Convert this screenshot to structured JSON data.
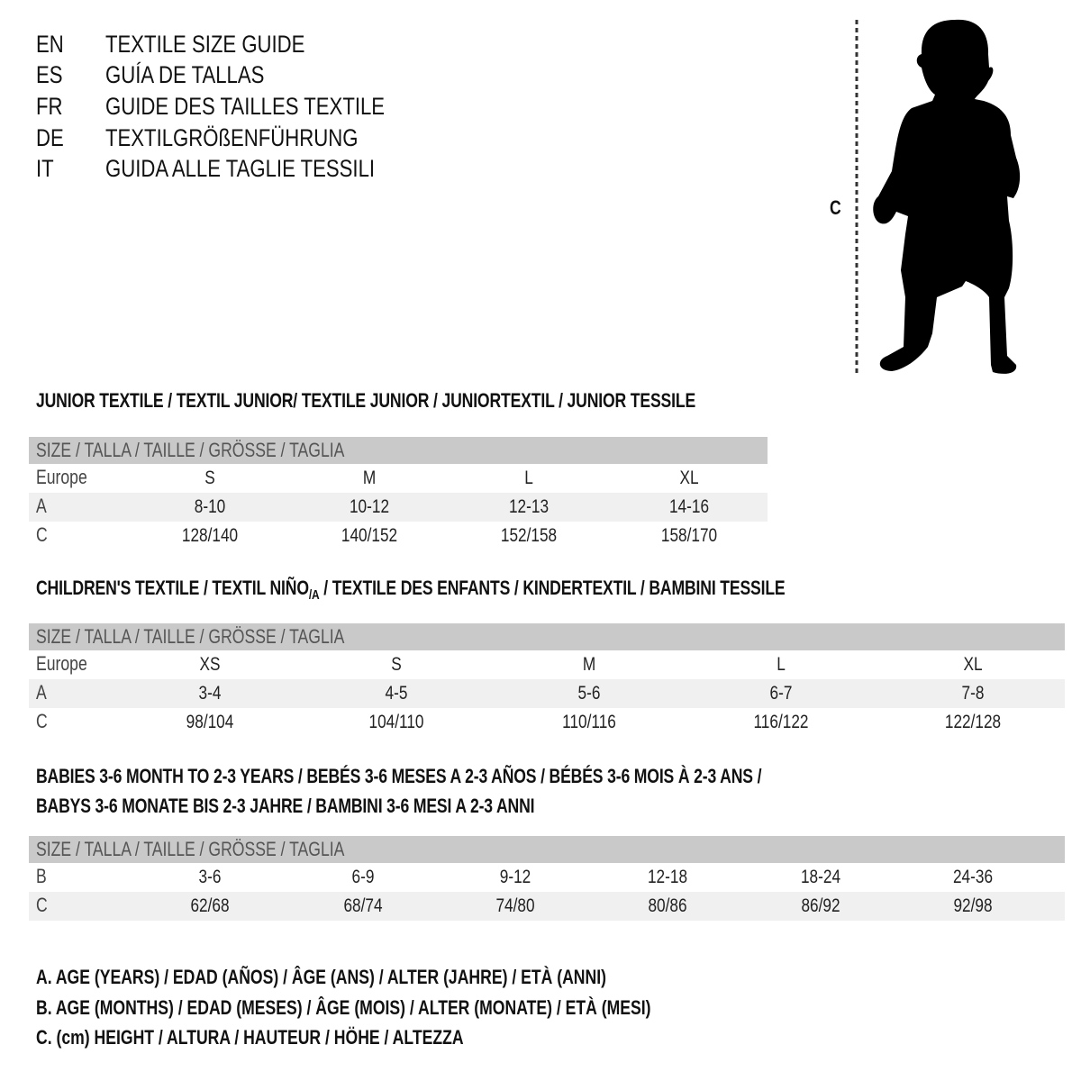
{
  "titles": [
    {
      "lang": "EN",
      "text": "TEXTILE SIZE GUIDE"
    },
    {
      "lang": "ES",
      "text": "GUÍA DE TALLAS"
    },
    {
      "lang": "FR",
      "text": "GUIDE DES TAILLES TEXTILE"
    },
    {
      "lang": "DE",
      "text": "TEXTILGRÖßENFÜHRUNG"
    },
    {
      "lang": "IT",
      "text": "GUIDA ALLE TAGLIE TESSILI"
    }
  ],
  "figure": {
    "label": "C",
    "icon": "child-silhouette-icon"
  },
  "junior": {
    "title": "JUNIOR TEXTILE / TEXTIL JUNIOR/ TEXTILE JUNIOR / JUNIORTEXTIL / JUNIOR TESSILE",
    "header": "SIZE / TALLA / TAILLE / GRÖSSE / TAGLIA",
    "rows": [
      {
        "label": "Europe",
        "values": [
          "S",
          "M",
          "L",
          "XL"
        ]
      },
      {
        "label": "A",
        "values": [
          "8-10",
          "10-12",
          "12-13",
          "14-16"
        ]
      },
      {
        "label": "C",
        "values": [
          "128/140",
          "140/152",
          "152/158",
          "158/170"
        ]
      }
    ]
  },
  "children": {
    "title_pre": "CHILDREN'S TEXTILE / TEXTIL NIÑO",
    "title_sub": "/A",
    "title_post": " / TEXTILE DES ENFANTS / KINDERTEXTIL / BAMBINI TESSILE",
    "header": "SIZE / TALLA / TAILLE / GRÖSSE / TAGLIA",
    "rows": [
      {
        "label": "Europe",
        "values": [
          "XS",
          "S",
          "M",
          "L",
          "XL"
        ]
      },
      {
        "label": "A",
        "values": [
          "3-4",
          "4-5",
          "5-6",
          "6-7",
          "7-8"
        ]
      },
      {
        "label": "C",
        "values": [
          "98/104",
          "104/110",
          "110/116",
          "116/122",
          "122/128"
        ]
      }
    ]
  },
  "babies": {
    "title_line1": "BABIES 3-6 MONTH TO 2-3 YEARS / BEBÉS 3-6 MESES A 2-3 AÑOS / BÉBÉS 3-6 MOIS À 2-3 ANS /",
    "title_line2": "BABYS 3-6 MONATE BIS 2-3 JAHRE / BAMBINI 3-6 MESI A 2-3 ANNI",
    "header": "SIZE / TALLA / TAILLE / GRÖSSE / TAGLIA",
    "rows": [
      {
        "label": "B",
        "values": [
          "3-6",
          "6-9",
          "9-12",
          "12-18",
          "18-24",
          "24-36"
        ]
      },
      {
        "label": "C",
        "values": [
          "62/68",
          "68/74",
          "74/80",
          "80/86",
          "86/92",
          "92/98"
        ]
      }
    ]
  },
  "legend": [
    "A. AGE (YEARS) / EDAD (AÑOS) / ÂGE (ANS) / ALTER (JAHRE) / ETÀ (ANNI)",
    "B. AGE (MONTHS) / EDAD (MESES) / ÂGE (MOIS) / ALTER (MONATE) / ETÀ (MESI)",
    "C. (cm) HEIGHT / ALTURA / HAUTEUR / HÖHE / ALTEZZA"
  ],
  "colors": {
    "header_bar": "#c9c9c9",
    "stripe": "#f0f0f0",
    "text": "#111111"
  }
}
